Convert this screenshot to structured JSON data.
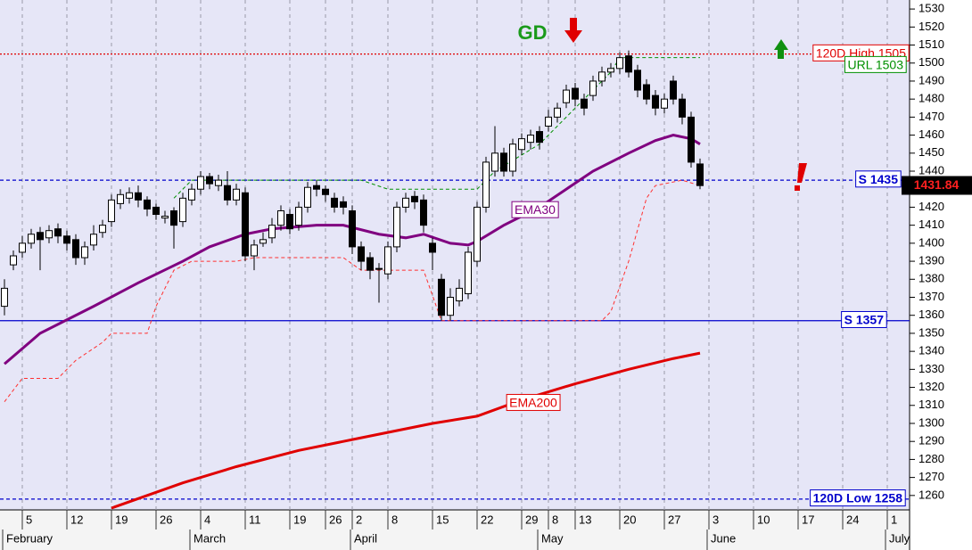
{
  "chart_data": {
    "type": "candlestick",
    "xlim": [
      -0.5,
      101.5
    ],
    "ylim": [
      1252,
      1535
    ],
    "yticks": [
      1260,
      1270,
      1280,
      1290,
      1300,
      1310,
      1320,
      1330,
      1340,
      1350,
      1360,
      1370,
      1380,
      1390,
      1400,
      1410,
      1420,
      1430,
      1440,
      1450,
      1460,
      1470,
      1480,
      1490,
      1500,
      1510,
      1520,
      1530
    ],
    "xticks": [
      {
        "value": 2,
        "label": "5"
      },
      {
        "value": 7,
        "label": "12"
      },
      {
        "value": 12,
        "label": "19"
      },
      {
        "value": 17,
        "label": "26"
      },
      {
        "value": 22,
        "label": "4"
      },
      {
        "value": 27,
        "label": "11"
      },
      {
        "value": 32,
        "label": "19"
      },
      {
        "value": 36,
        "label": "26"
      },
      {
        "value": 39,
        "label": "2"
      },
      {
        "value": 43,
        "label": "8"
      },
      {
        "value": 48,
        "label": "15"
      },
      {
        "value": 53,
        "label": "22"
      },
      {
        "value": 58,
        "label": "29"
      },
      {
        "value": 61,
        "label": "8"
      },
      {
        "value": 64,
        "label": "13"
      },
      {
        "value": 69,
        "label": "20"
      },
      {
        "value": 74,
        "label": "27"
      },
      {
        "value": 79,
        "label": "3"
      },
      {
        "value": 84,
        "label": "10"
      },
      {
        "value": 89,
        "label": "17"
      },
      {
        "value": 94,
        "label": "24"
      },
      {
        "value": 99,
        "label": "1"
      }
    ],
    "months": [
      {
        "value": 0,
        "label": "February"
      },
      {
        "value": 21,
        "label": "March"
      },
      {
        "value": 39,
        "label": "April"
      },
      {
        "value": 60,
        "label": "May"
      },
      {
        "value": 79,
        "label": "June"
      },
      {
        "value": 99,
        "label": "July"
      }
    ],
    "grid": true,
    "open": [
      1365,
      1388,
      1395,
      1400,
      1406,
      1403,
      1408,
      1404,
      1402,
      1392,
      1399,
      1406,
      1412,
      1422,
      1425,
      1428,
      1424,
      1420,
      1414,
      1418,
      1412,
      1424,
      1430,
      1437,
      1432,
      1432,
      1424,
      1428,
      1393,
      1400,
      1403,
      1410,
      1416,
      1410,
      1420,
      1432,
      1430,
      1425,
      1423,
      1418,
      1398,
      1392,
      1386,
      1383,
      1398,
      1420,
      1426,
      1424,
      1400,
      1380,
      1360,
      1368,
      1372,
      1390,
      1420,
      1440,
      1450,
      1440,
      1452,
      1456,
      1462,
      1465,
      1470,
      1478,
      1486,
      1480,
      1482,
      1490,
      1495,
      1497,
      1504,
      1496,
      1488,
      1482,
      1475,
      1490,
      1480,
      1470,
      1444
    ],
    "high": [
      1380,
      1396,
      1404,
      1408,
      1409,
      1410,
      1411,
      1407,
      1405,
      1401,
      1410,
      1413,
      1427,
      1430,
      1431,
      1432,
      1426,
      1422,
      1418,
      1420,
      1428,
      1433,
      1440,
      1439,
      1438,
      1440,
      1433,
      1431,
      1402,
      1406,
      1414,
      1421,
      1419,
      1423,
      1434,
      1435,
      1432,
      1428,
      1426,
      1421,
      1401,
      1395,
      1389,
      1401,
      1423,
      1428,
      1429,
      1427,
      1403,
      1383,
      1375,
      1380,
      1398,
      1423,
      1448,
      1465,
      1453,
      1458,
      1461,
      1463,
      1465,
      1474,
      1478,
      1488,
      1489,
      1483,
      1493,
      1498,
      1500,
      1506,
      1507,
      1499,
      1491,
      1485,
      1483,
      1493,
      1483,
      1473,
      1447
    ],
    "low": [
      1360,
      1385,
      1392,
      1397,
      1385,
      1400,
      1400,
      1396,
      1388,
      1388,
      1396,
      1403,
      1409,
      1419,
      1422,
      1420,
      1415,
      1413,
      1411,
      1397,
      1409,
      1421,
      1427,
      1430,
      1429,
      1421,
      1421,
      1390,
      1385,
      1398,
      1400,
      1407,
      1405,
      1407,
      1417,
      1426,
      1423,
      1417,
      1416,
      1394,
      1385,
      1380,
      1367,
      1380,
      1395,
      1417,
      1419,
      1406,
      1385,
      1357,
      1357,
      1365,
      1369,
      1387,
      1417,
      1437,
      1437,
      1437,
      1449,
      1452,
      1452,
      1462,
      1467,
      1475,
      1476,
      1471,
      1479,
      1487,
      1492,
      1494,
      1492,
      1481,
      1477,
      1471,
      1472,
      1477,
      1466,
      1442,
      1430
    ],
    "close": [
      1375,
      1393,
      1400,
      1405,
      1402,
      1407,
      1404,
      1400,
      1392,
      1398,
      1405,
      1410,
      1424,
      1427,
      1428,
      1424,
      1419,
      1416,
      1415,
      1410,
      1425,
      1430,
      1437,
      1433,
      1435,
      1424,
      1430,
      1393,
      1399,
      1402,
      1410,
      1418,
      1408,
      1420,
      1431,
      1430,
      1427,
      1420,
      1420,
      1398,
      1390,
      1385,
      1386,
      1398,
      1420,
      1425,
      1423,
      1410,
      1395,
      1360,
      1370,
      1375,
      1395,
      1420,
      1445,
      1450,
      1440,
      1455,
      1458,
      1460,
      1456,
      1470,
      1475,
      1485,
      1480,
      1475,
      1490,
      1495,
      1497,
      1503,
      1495,
      1485,
      1480,
      1475,
      1480,
      1480,
      1470,
      1445,
      1432
    ],
    "lines": [
      {
        "name": "EMA30",
        "color": "#800080",
        "dash": "solid",
        "width": 3,
        "x": [
          0,
          4,
          10,
          15,
          20,
          23,
          27,
          30,
          35,
          38,
          42,
          45,
          47,
          50,
          52,
          53,
          56,
          60,
          63,
          66,
          70,
          73,
          75,
          77,
          78
        ],
        "values": [
          1333,
          1350,
          1365,
          1378,
          1390,
          1398,
          1405,
          1408,
          1410,
          1410,
          1405,
          1403,
          1405,
          1400,
          1399,
          1401,
          1410,
          1420,
          1430,
          1440,
          1450,
          1457,
          1460,
          1458,
          1455
        ]
      },
      {
        "name": "EMA200",
        "color": "#e00000",
        "dash": "solid",
        "width": 3,
        "x": [
          12,
          20,
          26,
          33,
          40,
          48,
          53,
          58,
          64,
          70,
          75,
          78
        ],
        "values": [
          1253,
          1267,
          1276,
          1285,
          1292,
          1300,
          1304,
          1313,
          1322,
          1330,
          1336,
          1339
        ]
      },
      {
        "color": "#ff3030",
        "dash": "dashed",
        "width": 1,
        "x": [
          0,
          2,
          6,
          8,
          11,
          12,
          16,
          17,
          19,
          21,
          26,
          28,
          38,
          40,
          47,
          49,
          67,
          68,
          70,
          72,
          73,
          76,
          78
        ],
        "values": [
          1312,
          1325,
          1325,
          1335,
          1345,
          1350,
          1350,
          1365,
          1385,
          1390,
          1390,
          1392,
          1392,
          1385,
          1385,
          1357,
          1357,
          1362,
          1390,
          1425,
          1432,
          1435,
          1432
        ]
      },
      {
        "color": "#009000",
        "dash": "dashed",
        "width": 1,
        "x": [
          19,
          21,
          40,
          43,
          53,
          55,
          60,
          65,
          68,
          69,
          78
        ],
        "values": [
          1425,
          1435,
          1435,
          1430,
          1430,
          1440,
          1455,
          1480,
          1495,
          1503,
          1503
        ]
      }
    ],
    "levels": [
      {
        "label": "120D High 1505",
        "value": 1505,
        "color": "#e00000",
        "line": "dotted"
      },
      {
        "label": "URL 1503",
        "value": 1503,
        "color": "#009000",
        "line": "none"
      },
      {
        "label": "S 1435",
        "value": 1435,
        "color": "#0000cc",
        "line": "dashed"
      },
      {
        "label": "S 1357",
        "value": 1357,
        "color": "#0000cc",
        "line": "solid"
      },
      {
        "label": "120D Low 1258",
        "value": 1258,
        "color": "#0000cc",
        "line": "dashed"
      }
    ],
    "signal": "GD",
    "last": 1431.84
  }
}
